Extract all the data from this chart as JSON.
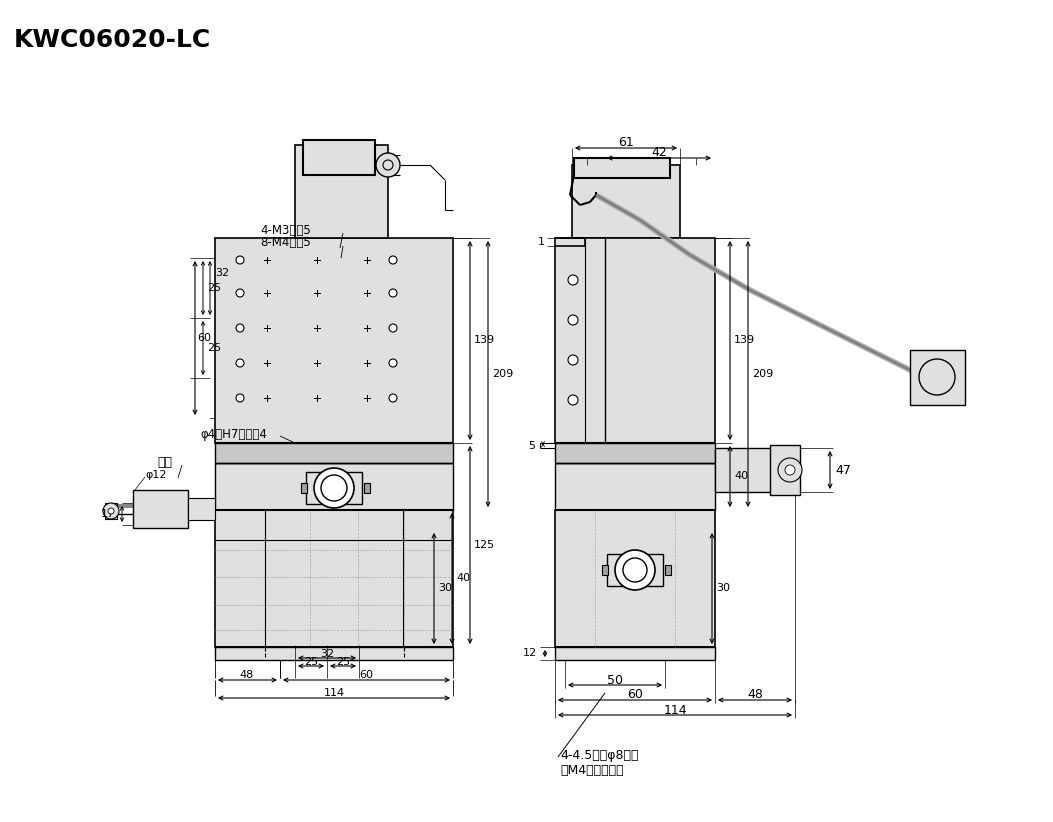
{
  "title": "KWC06020-LC",
  "bg_color": "#ffffff",
  "line_color": "#000000",
  "gray_fill": "#d4d4d4",
  "light_gray": "#e0e0e0",
  "mid_gray": "#c8c8c8",
  "dark_gray": "#a0a0a0",
  "annotation_note1": "4-M3深剆5",
  "annotation_note2": "8-M4深剆5",
  "annotation_phi4": "φ4（H7）深剆4",
  "annotation_screw": "4-4.5通孔φ8沉孔",
  "annotation_screw2": "（M4用螺栓孔）",
  "annotation_knob": "旋鈕",
  "annotation_phi12": "φ12"
}
